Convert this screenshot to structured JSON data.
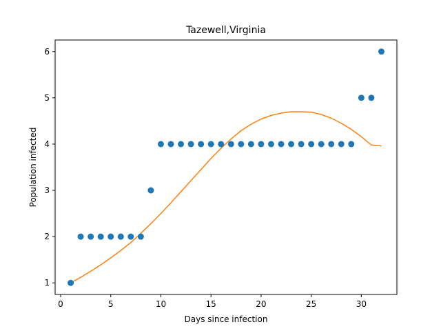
{
  "chart_data": {
    "type": "scatter",
    "title": "Tazewell,Virginia",
    "xlabel": "Days since infection",
    "ylabel": "Population infected",
    "xlim": [
      -0.55,
      33.55
    ],
    "ylim": [
      0.75,
      6.25
    ],
    "xticks": [
      0,
      5,
      10,
      15,
      20,
      25,
      30
    ],
    "yticks": [
      1,
      2,
      3,
      4,
      5,
      6
    ],
    "grid": false,
    "series": [
      {
        "kind": "scatter",
        "color": "#1f77b4",
        "x": [
          1,
          2,
          3,
          4,
          5,
          6,
          7,
          8,
          9,
          10,
          11,
          12,
          13,
          14,
          15,
          16,
          17,
          18,
          19,
          20,
          21,
          22,
          23,
          24,
          25,
          26,
          27,
          28,
          29,
          30,
          31,
          32
        ],
        "y": [
          1,
          2,
          2,
          2,
          2,
          2,
          2,
          2,
          3,
          4,
          4,
          4,
          4,
          4,
          4,
          4,
          4,
          4,
          4,
          4,
          4,
          4,
          4,
          4,
          4,
          4,
          4,
          4,
          4,
          5,
          5,
          6
        ]
      },
      {
        "kind": "line",
        "color": "#ff7f0e",
        "x": [
          1,
          2,
          3,
          4,
          5,
          6,
          7,
          8,
          9,
          10,
          11,
          12,
          13,
          14,
          15,
          16,
          17,
          18,
          19,
          20,
          21,
          22,
          23,
          24,
          25,
          26,
          27,
          28,
          29,
          30,
          31,
          32
        ],
        "y": [
          1.0,
          1.12,
          1.25,
          1.39,
          1.54,
          1.7,
          1.87,
          2.07,
          2.28,
          2.5,
          2.73,
          2.97,
          3.21,
          3.45,
          3.69,
          3.91,
          4.11,
          4.29,
          4.43,
          4.54,
          4.62,
          4.67,
          4.7,
          4.7,
          4.69,
          4.64,
          4.56,
          4.45,
          4.32,
          4.16,
          3.98,
          3.96
        ]
      }
    ]
  }
}
